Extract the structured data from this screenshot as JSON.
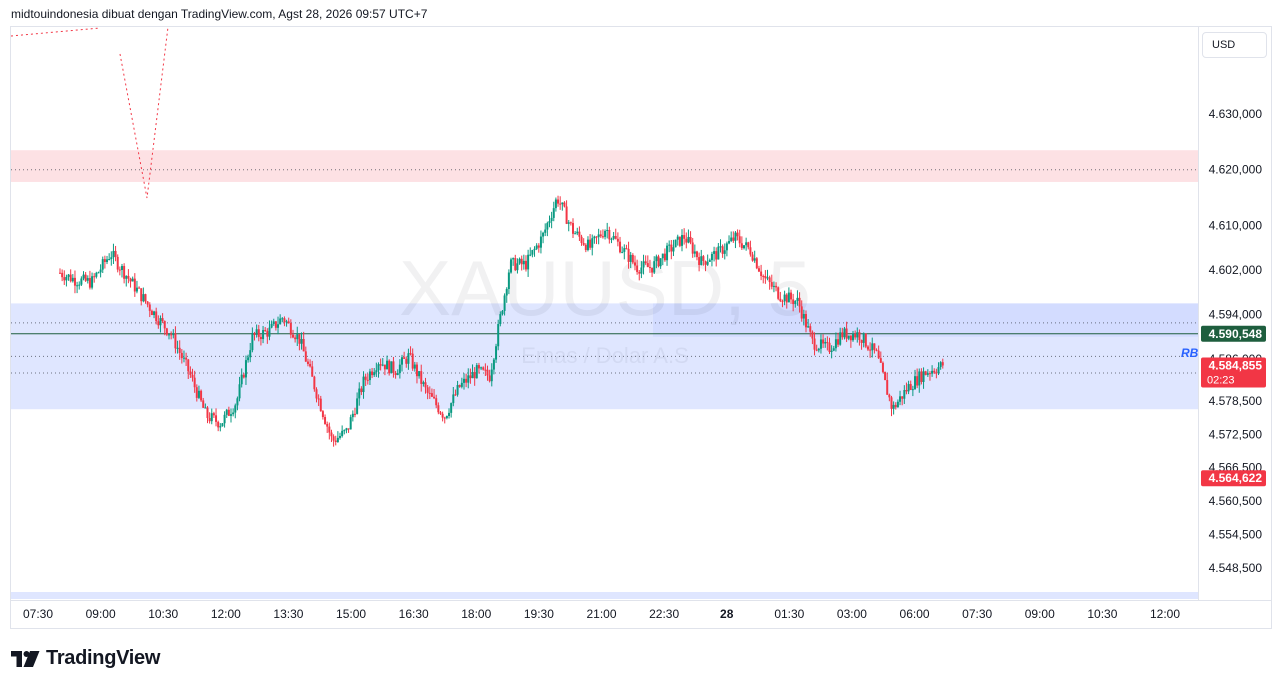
{
  "header": {
    "caption": "midtouindonesia dibuat dengan TradingView.com, Agst 28, 2026 09:57 UTC+7"
  },
  "currency": "USD",
  "watermark": {
    "symbol": "XAUUSD, 5",
    "subtitle": "Emas / Dolar A.S"
  },
  "footer": {
    "brand": "TradingView"
  },
  "colors": {
    "up": "#089981",
    "down": "#f23645",
    "resistance_zone": "#fde1e4",
    "support_zone": "#dfe6ff",
    "current_price_line": "#1e5e3e",
    "grid_border": "#e0e3eb"
  },
  "chart_data": {
    "type": "candlestick",
    "x_ticks": [
      "07:30",
      "09:00",
      "10:30",
      "12:00",
      "13:30",
      "15:00",
      "16:30",
      "18:00",
      "19:30",
      "21:00",
      "22:30",
      "28",
      "01:30",
      "03:00",
      "06:00",
      "07:30",
      "09:00",
      "10:30",
      "12:00"
    ],
    "y_ticks": [
      "4.630,000",
      "4.620,000",
      "4.610,000",
      "4.602,000",
      "4.594,000",
      "4.586,000",
      "4.578,500",
      "4.572,500",
      "4.566,500",
      "4.560,500",
      "4.554,500",
      "4.548,500"
    ],
    "price_labels": [
      {
        "text": "4.590,548",
        "value": 4590.548,
        "color": "#1e5e3e"
      },
      {
        "text": "4.584,855",
        "sub": "02:23",
        "value": 4584.855,
        "color": "#f23645"
      },
      {
        "text": "4.564,622",
        "value": 4564.622,
        "color": "#f23645"
      }
    ],
    "resistance_zone": [
      4617.8,
      4623.5
    ],
    "support_zone": [
      4577.0,
      4596.0
    ],
    "dotted_levels": [
      4620.0,
      4592.5,
      4586.5,
      4583.5
    ],
    "badge": "RB",
    "path_points": [
      [
        4.0,
        4601.5
      ],
      [
        5.4,
        4600.2
      ],
      [
        6.8,
        4599.8
      ],
      [
        8.5,
        4605.0
      ],
      [
        9.7,
        4601.6
      ],
      [
        11.0,
        4598.0
      ],
      [
        12.6,
        4593.6
      ],
      [
        13.9,
        4590.4
      ],
      [
        15.5,
        4583.5
      ],
      [
        17.0,
        4575.8
      ],
      [
        18.3,
        4574.5
      ],
      [
        19.7,
        4578.4
      ],
      [
        21.1,
        4590.0
      ],
      [
        22.6,
        4591.0
      ],
      [
        23.8,
        4593.5
      ],
      [
        25.3,
        4589.5
      ],
      [
        26.8,
        4580.0
      ],
      [
        28.2,
        4571.3
      ],
      [
        29.5,
        4573.0
      ],
      [
        31.0,
        4582.0
      ],
      [
        32.3,
        4585.7
      ],
      [
        33.8,
        4584.0
      ],
      [
        35.0,
        4586.5
      ],
      [
        36.6,
        4580.0
      ],
      [
        38.2,
        4575.8
      ],
      [
        39.5,
        4581.0
      ],
      [
        41.0,
        4583.8
      ],
      [
        42.2,
        4583.0
      ],
      [
        44.0,
        4603.0
      ],
      [
        45.4,
        4603.0
      ],
      [
        46.9,
        4608.0
      ],
      [
        48.2,
        4615.0
      ],
      [
        49.6,
        4609.0
      ],
      [
        51.1,
        4606.0
      ],
      [
        52.5,
        4609.5
      ],
      [
        53.9,
        4606.0
      ],
      [
        55.3,
        4602.5
      ],
      [
        56.6,
        4602.5
      ],
      [
        58.0,
        4605.3
      ],
      [
        59.5,
        4608.0
      ],
      [
        61.0,
        4603.5
      ],
      [
        62.5,
        4605.0
      ],
      [
        64.0,
        4607.8
      ],
      [
        65.4,
        4605.5
      ],
      [
        66.6,
        4600.5
      ],
      [
        68.0,
        4597.5
      ],
      [
        69.6,
        4596.3
      ],
      [
        70.9,
        4589.0
      ],
      [
        72.3,
        4587.8
      ],
      [
        73.5,
        4590.5
      ],
      [
        75.0,
        4590.5
      ],
      [
        76.6,
        4586.7
      ],
      [
        78.0,
        4577.0
      ],
      [
        79.4,
        4581.0
      ],
      [
        80.8,
        4583.5
      ],
      [
        82.5,
        4584.9
      ]
    ],
    "segment_x": [
      0.0,
      12.5,
      17.5,
      42.7,
      64.7,
      72.2,
      82.5,
      86.0,
      100.0
    ],
    "segment_anchors": [
      0.0,
      6.9,
      7.4,
      7.6,
      7.0,
      7.0,
      10.1,
      11.0,
      12.5
    ]
  }
}
